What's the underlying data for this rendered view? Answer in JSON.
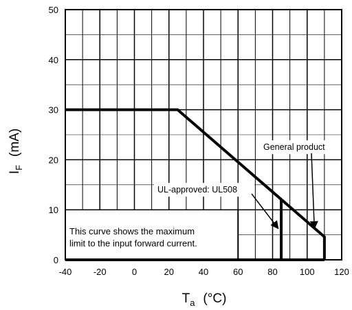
{
  "chart_data": {
    "type": "line",
    "xlabel": {
      "main": "T",
      "sub": "a",
      "unit": "(°C)"
    },
    "ylabel": {
      "main": "I",
      "sub": "F",
      "unit": "(mA)"
    },
    "xlim": [
      -40,
      120
    ],
    "ylim": [
      0,
      50
    ],
    "xticks": [
      -40,
      -20,
      0,
      20,
      40,
      60,
      80,
      100,
      120
    ],
    "xtick_labels": [
      "-40",
      "-20",
      "0",
      "20",
      "40",
      "60",
      "80",
      "100",
      "120"
    ],
    "yticks": [
      0,
      10,
      20,
      30,
      40,
      50
    ],
    "ytick_labels": [
      "0",
      "10",
      "20",
      "30",
      "40",
      "50"
    ],
    "grid": true,
    "series": [
      {
        "name": "General product",
        "x": [
          -40,
          25,
          110,
          110
        ],
        "y": [
          30,
          30,
          4.6,
          0
        ]
      },
      {
        "name": "UL-approved: UL508",
        "x": [
          85,
          85
        ],
        "y": [
          12,
          0
        ]
      }
    ],
    "annotations": [
      {
        "text": "General product",
        "target": [
          103,
          6
        ]
      },
      {
        "text": "UL-approved: UL508",
        "target": [
          84,
          6
        ]
      }
    ],
    "note_lines": [
      "This curve shows the maximum",
      "limit to the input forward current."
    ]
  }
}
